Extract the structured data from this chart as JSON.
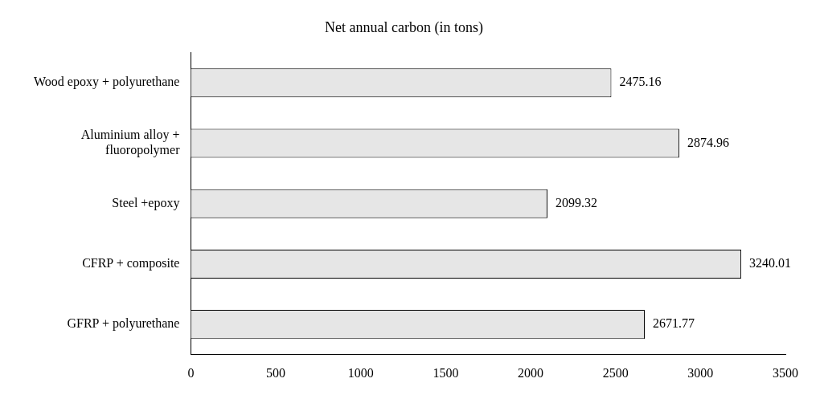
{
  "chart_data": {
    "type": "bar",
    "orientation": "horizontal",
    "title": "Net annual carbon (in tons)",
    "categories": [
      "Wood epoxy + polyurethane",
      "Aluminium alloy + fluoropolymer",
      "Steel +epoxy",
      "CFRP + composite",
      "GFRP + polyurethane"
    ],
    "values": [
      2475.16,
      2874.96,
      2099.32,
      3240.01,
      2671.77
    ],
    "color": "#e6e6e6",
    "xlim": [
      0,
      3500
    ],
    "xticks": [
      0,
      500,
      1000,
      1500,
      2000,
      2500,
      3000,
      3500
    ],
    "grid": false,
    "legend": false,
    "data_labels": true
  }
}
